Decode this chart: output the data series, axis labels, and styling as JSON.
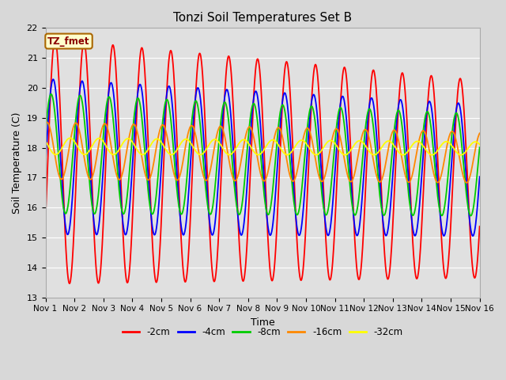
{
  "title": "Tonzi Soil Temperatures Set B",
  "xlabel": "Time",
  "ylabel": "Soil Temperature (C)",
  "ylim": [
    13.0,
    22.0
  ],
  "yticks": [
    13.0,
    14.0,
    15.0,
    16.0,
    17.0,
    18.0,
    19.0,
    20.0,
    21.0,
    22.0
  ],
  "xlim_days": [
    0,
    15
  ],
  "xtick_labels": [
    "Nov 1",
    "Nov 2",
    "Nov 3",
    "Nov 4",
    "Nov 5",
    "Nov 6",
    "Nov 7",
    "Nov 8",
    "Nov 9",
    "Nov 10",
    "Nov 11",
    "Nov 12",
    "Nov 13",
    "Nov 14",
    "Nov 15",
    "Nov 16"
  ],
  "annotation_label": "TZ_fmet",
  "series": [
    {
      "label": "-2cm",
      "color": "#ff0000",
      "mean": 17.55,
      "amplitude_start": 4.1,
      "amplitude_end": 3.3,
      "phase_shift": -0.5,
      "mean_trend": -0.04
    },
    {
      "label": "-4cm",
      "color": "#0000ff",
      "mean": 17.7,
      "amplitude_start": 2.6,
      "amplitude_end": 2.2,
      "phase_shift": -0.1,
      "mean_trend": -0.03
    },
    {
      "label": "-8cm",
      "color": "#00cc00",
      "mean": 17.8,
      "amplitude_start": 2.0,
      "amplitude_end": 1.7,
      "phase_shift": 0.35,
      "mean_trend": -0.025
    },
    {
      "label": "-16cm",
      "color": "#ff8800",
      "mean": 17.9,
      "amplitude_start": 0.95,
      "amplitude_end": 0.85,
      "phase_shift": 1.25,
      "mean_trend": -0.015
    },
    {
      "label": "-32cm",
      "color": "#ffff00",
      "mean": 18.05,
      "amplitude_start": 0.28,
      "amplitude_end": 0.22,
      "phase_shift": 2.5,
      "mean_trend": -0.005
    }
  ],
  "bg_color": "#d8d8d8",
  "plot_bg_color": "#e0e0e0",
  "grid_color": "#ffffff",
  "legend_colors": [
    "#ff0000",
    "#0000ff",
    "#00cc00",
    "#ff8800",
    "#ffff00"
  ],
  "legend_labels": [
    "-2cm",
    "-4cm",
    "-8cm",
    "-16cm",
    "-32cm"
  ]
}
